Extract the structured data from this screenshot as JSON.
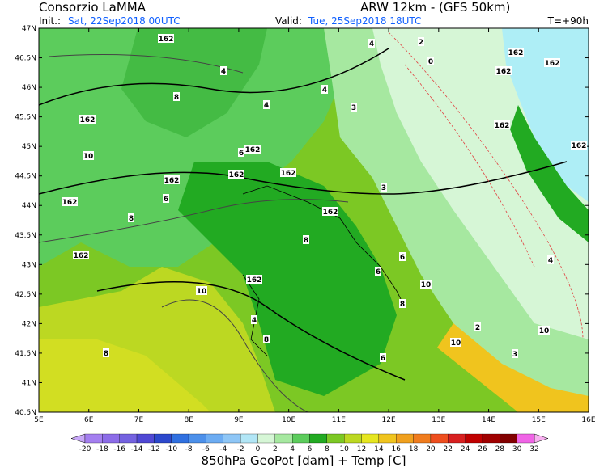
{
  "header": {
    "title": "Consorzio LaMMA",
    "model": "ARW 12km - (GFS 50km)",
    "init_label": "Init.:",
    "init_time": "Sat, 22Sep2018 00UTC",
    "valid_label": "Valid:",
    "valid_time": "Tue, 25Sep2018 18UTC",
    "lead_time": "T=+90h"
  },
  "map": {
    "lat_ticks": [
      "47N",
      "46.5N",
      "46N",
      "45.5N",
      "45N",
      "44.5N",
      "44N",
      "43.5N",
      "43N",
      "42.5N",
      "42N",
      "41.5N",
      "41N",
      "40.5N"
    ],
    "lon_ticks": [
      "5E",
      "6E",
      "7E",
      "8E",
      "9E",
      "10E",
      "11E",
      "12E",
      "13E",
      "14E",
      "15E",
      "16E"
    ],
    "contour_labels": [
      "162",
      "162",
      "162",
      "162",
      "162",
      "162",
      "162",
      "162",
      "162",
      "162",
      "162",
      "162",
      "162",
      "162",
      "162",
      "10",
      "10",
      "10",
      "10",
      "10",
      "8",
      "8",
      "8",
      "8",
      "8",
      "8",
      "6",
      "6",
      "6",
      "6",
      "6",
      "4",
      "4",
      "4",
      "4",
      "4",
      "4",
      "3",
      "3",
      "3",
      "2",
      "2",
      "0"
    ]
  },
  "colorbar": {
    "labels": [
      "-20",
      "-18",
      "-16",
      "-14",
      "-12",
      "-10",
      "-8",
      "-6",
      "-4",
      "-2",
      "0",
      "2",
      "4",
      "6",
      "8",
      "10",
      "12",
      "14",
      "16",
      "18",
      "20",
      "22",
      "24",
      "26",
      "28",
      "30",
      "32"
    ],
    "colors": [
      "#a47ff0",
      "#8c6ce8",
      "#7462e0",
      "#5048d4",
      "#2c48cc",
      "#3070e0",
      "#4c90ea",
      "#6cacf2",
      "#8ec6f6",
      "#b2e6f6",
      "#d6f6d6",
      "#a6e8a0",
      "#5ccc5c",
      "#22aa22",
      "#7cc824",
      "#bcd822",
      "#e6e620",
      "#f0c41e",
      "#f0a01e",
      "#f07c1e",
      "#ee4e1e",
      "#d82020",
      "#c00000",
      "#a00000",
      "#820000",
      "#f064e6"
    ],
    "low_color": "#c8a8f8",
    "high_color": "#f8b0f0",
    "caption": "850hPa GeoPot [dam] + Temp [C]"
  }
}
